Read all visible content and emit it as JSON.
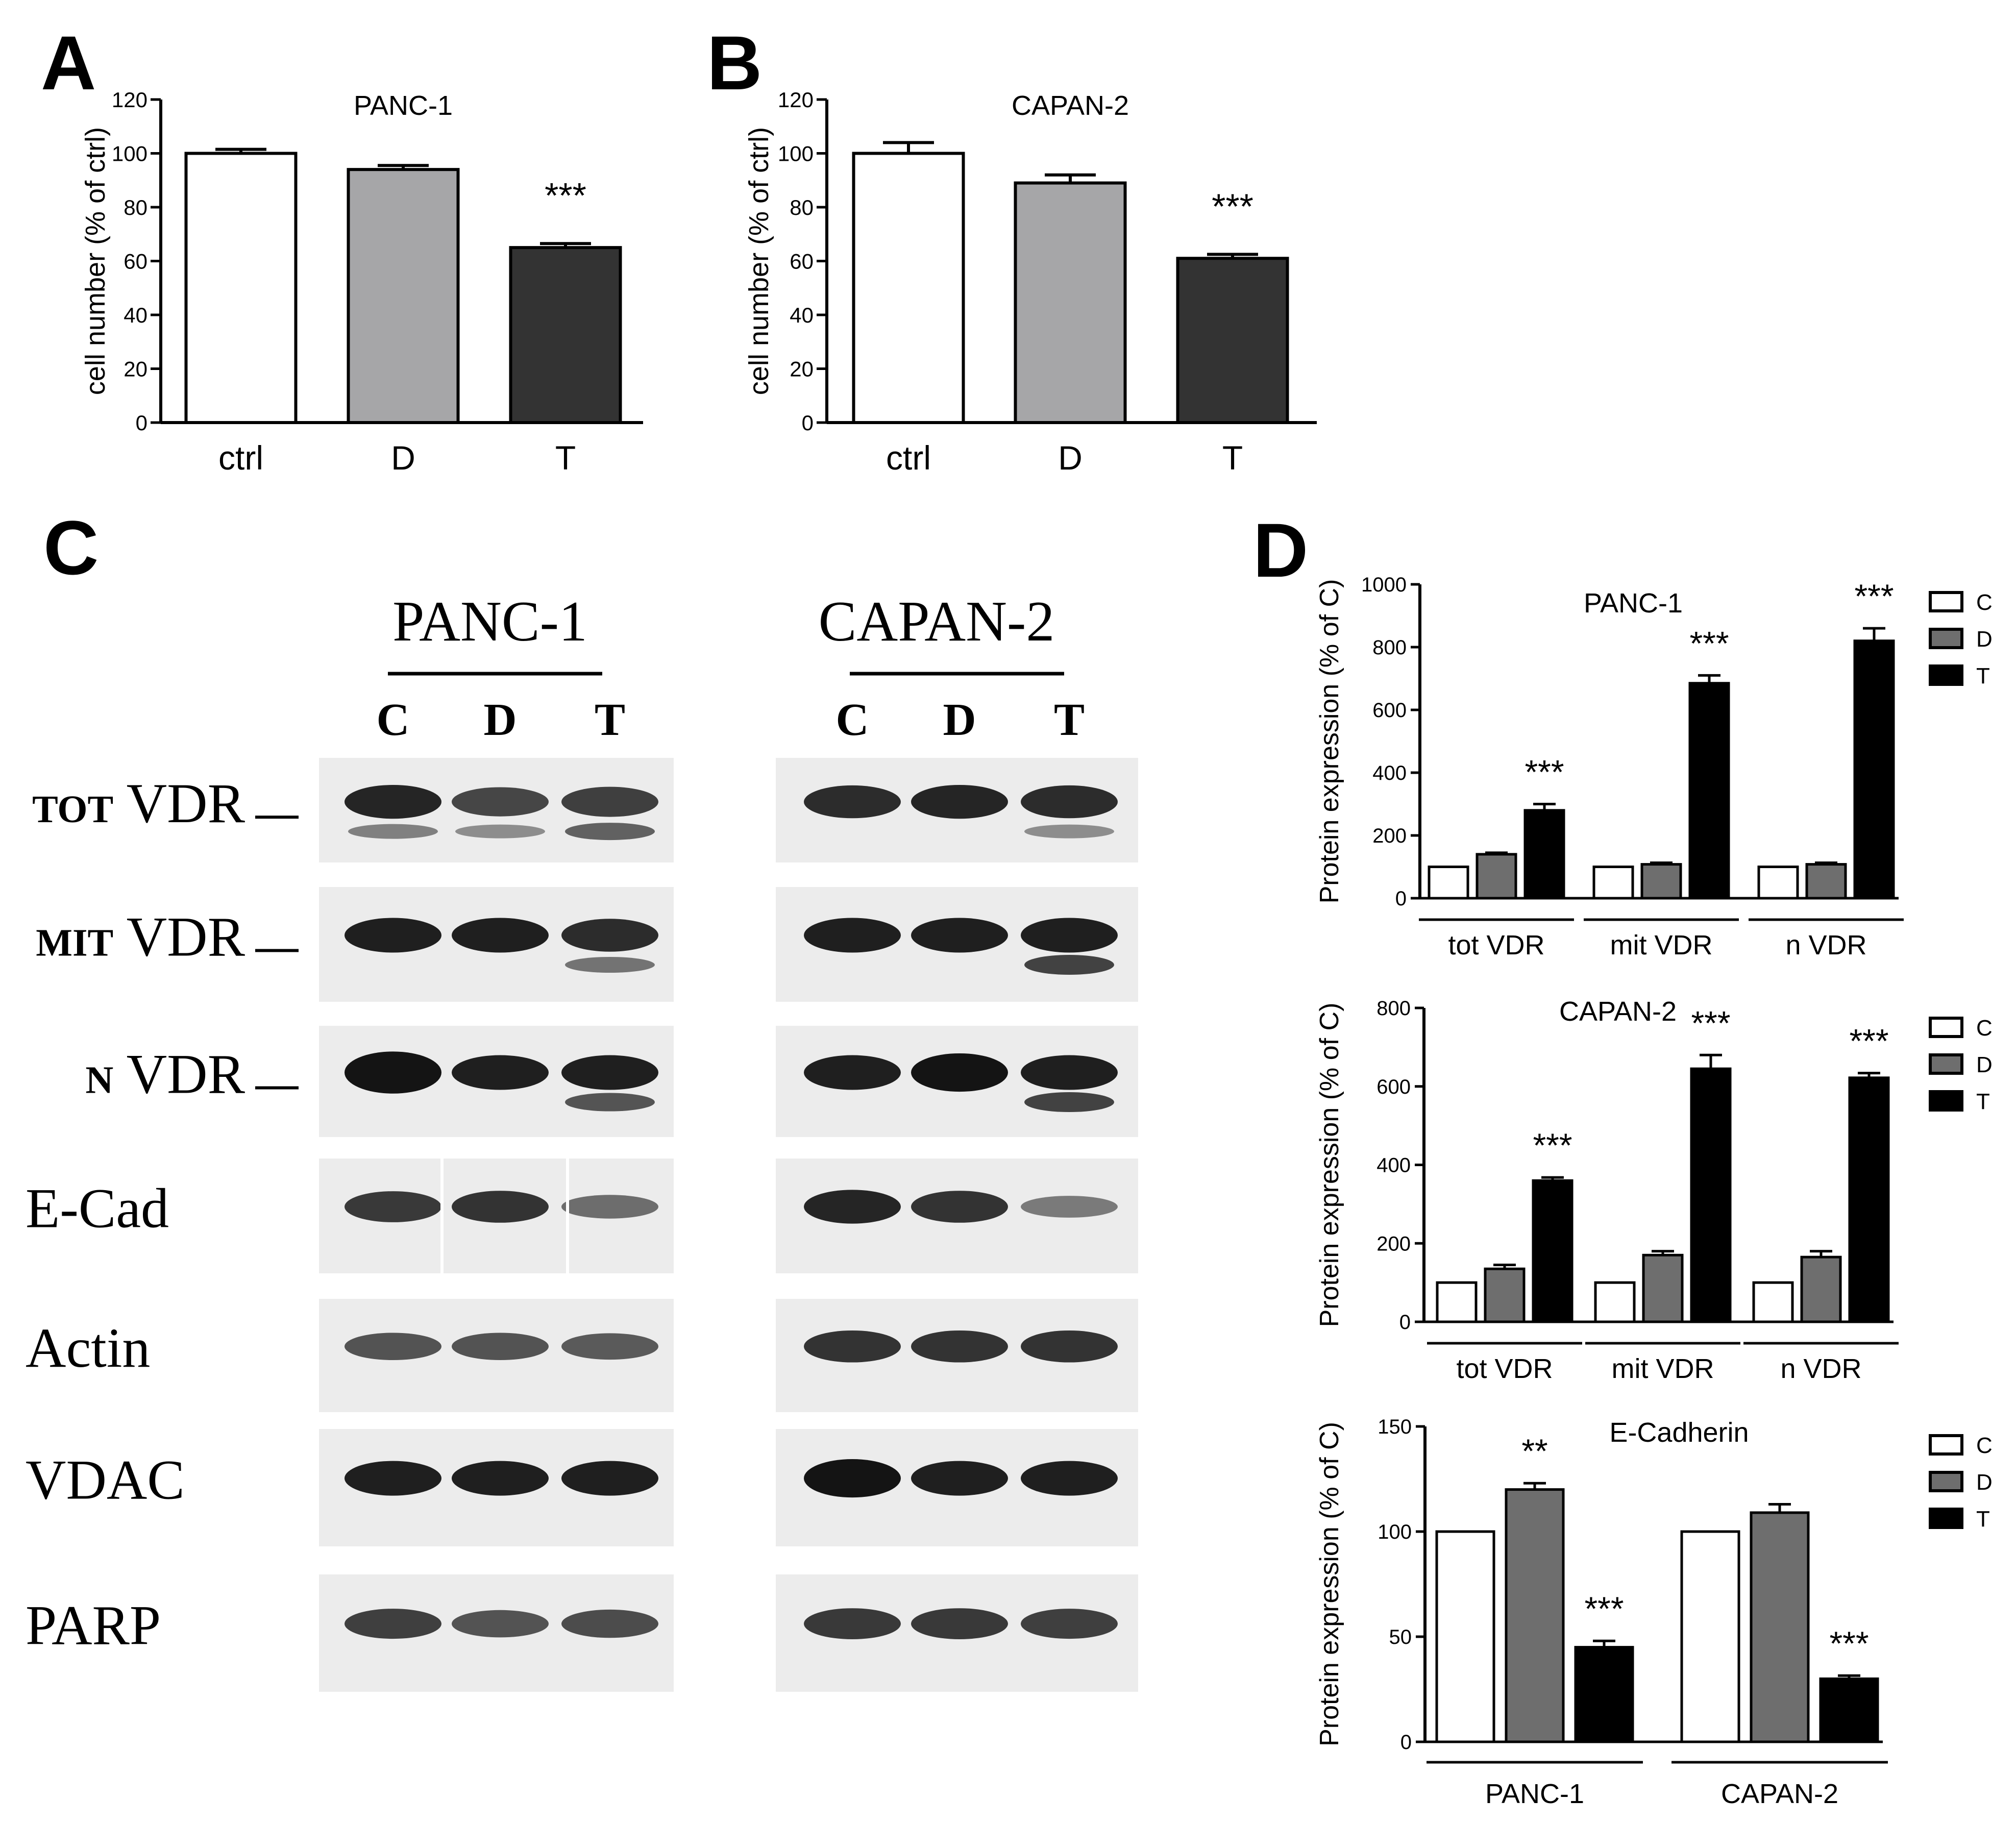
{
  "panel_labels": {
    "A": "A",
    "B": "B",
    "C": "C",
    "D": "D"
  },
  "colors": {
    "ctrl": "#ffffff",
    "D_light": "#a6a6a8",
    "T_dark": "#333333",
    "D_grey": "#6e6e6e",
    "T_black": "#000000",
    "axis": "#000000"
  },
  "chart_data": [
    {
      "id": "A",
      "type": "bar",
      "title": "PANC-1",
      "xlabel": "",
      "ylabel": "cell number (% of ctrl)",
      "ylim": [
        0,
        120
      ],
      "yticks": [
        "0",
        "20",
        "40",
        "60",
        "80",
        "100",
        "120"
      ],
      "categories": [
        "ctrl",
        "D",
        "T"
      ],
      "values": [
        100,
        94,
        65
      ],
      "errors": [
        1.5,
        1.5,
        1.5
      ],
      "annotations": [
        "",
        "",
        "***"
      ]
    },
    {
      "id": "B",
      "type": "bar",
      "title": "CAPAN-2",
      "xlabel": "",
      "ylabel": "cell number (% of ctrl)",
      "ylim": [
        0,
        120
      ],
      "yticks": [
        "0",
        "20",
        "40",
        "60",
        "80",
        "100",
        "120"
      ],
      "categories": [
        "ctrl",
        "D",
        "T"
      ],
      "values": [
        100,
        89,
        61
      ],
      "errors": [
        4,
        3,
        1.5
      ],
      "annotations": [
        "",
        "",
        "***"
      ]
    },
    {
      "id": "D1",
      "type": "bar",
      "title": "PANC-1",
      "ylabel": "Protein expression (% of C)",
      "ylim": [
        0,
        1000
      ],
      "yticks": [
        "0",
        "200",
        "400",
        "600",
        "800",
        "1000"
      ],
      "groups": [
        "tot VDR",
        "mit VDR",
        "n VDR"
      ],
      "legend": [
        "C",
        "D",
        "T"
      ],
      "legend_position": "right",
      "series": [
        {
          "name": "C",
          "values": [
            100,
            100,
            100
          ],
          "errors": [
            0,
            0,
            0
          ],
          "annotations": [
            "",
            "",
            ""
          ]
        },
        {
          "name": "D",
          "values": [
            140,
            108,
            108
          ],
          "errors": [
            5,
            5,
            5
          ],
          "annotations": [
            "",
            "",
            ""
          ]
        },
        {
          "name": "T",
          "values": [
            280,
            685,
            820
          ],
          "errors": [
            20,
            25,
            40
          ],
          "annotations": [
            "***",
            "***",
            "***"
          ]
        }
      ]
    },
    {
      "id": "D2",
      "type": "bar",
      "title": "CAPAN-2",
      "ylabel": "Protein expression (% of C)",
      "ylim": [
        0,
        800
      ],
      "yticks": [
        "0",
        "200",
        "400",
        "600",
        "800"
      ],
      "groups": [
        "tot VDR",
        "mit VDR",
        "n VDR"
      ],
      "legend": [
        "C",
        "D",
        "T"
      ],
      "legend_position": "right",
      "series": [
        {
          "name": "C",
          "values": [
            100,
            100,
            100
          ],
          "errors": [
            0,
            0,
            0
          ],
          "annotations": [
            "",
            "",
            ""
          ]
        },
        {
          "name": "D",
          "values": [
            135,
            170,
            165
          ],
          "errors": [
            10,
            10,
            15
          ],
          "annotations": [
            "",
            "",
            ""
          ]
        },
        {
          "name": "T",
          "values": [
            360,
            645,
            622
          ],
          "errors": [
            8,
            35,
            12
          ],
          "annotations": [
            "***",
            "***",
            "***"
          ]
        }
      ]
    },
    {
      "id": "D3",
      "type": "bar",
      "title": "E-Cadherin",
      "ylabel": "Protein expression (% of C)",
      "ylim": [
        0,
        150
      ],
      "yticks": [
        "0",
        "50",
        "100",
        "150"
      ],
      "groups": [
        "PANC-1",
        "CAPAN-2"
      ],
      "legend": [
        "C",
        "D",
        "T"
      ],
      "legend_position": "right",
      "series": [
        {
          "name": "C",
          "values": [
            100,
            100
          ],
          "errors": [
            0,
            0
          ],
          "annotations": [
            "",
            ""
          ]
        },
        {
          "name": "D",
          "values": [
            120,
            109
          ],
          "errors": [
            3,
            4
          ],
          "annotations": [
            "**",
            ""
          ]
        },
        {
          "name": "T",
          "values": [
            45,
            30
          ],
          "errors": [
            3,
            1.5
          ],
          "annotations": [
            "***",
            "***"
          ]
        }
      ]
    }
  ],
  "blot": {
    "cell_lines": [
      "PANC-1",
      "CAPAN-2"
    ],
    "lanes": [
      "C",
      "D",
      "T"
    ],
    "rows": [
      {
        "label_sc": "tot",
        "label": " VDR",
        "marker": true,
        "bands": [
          [
            0.95,
            0.7,
            0.75
          ],
          [
            0.9,
            0.95,
            0.9
          ]
        ],
        "lower": [
          [
            0.45,
            0.35,
            0.7
          ],
          [
            0,
            0,
            0.35
          ]
        ]
      },
      {
        "label_sc": "mit",
        "label": " VDR",
        "marker": true,
        "bands": [
          [
            1,
            1,
            0.9
          ],
          [
            1,
            1,
            1
          ]
        ],
        "lower": [
          [
            0,
            0,
            0.55
          ],
          [
            0,
            0,
            0.95
          ]
        ]
      },
      {
        "label_sc": "n",
        "label": " VDR",
        "marker": true,
        "bands": [
          [
            1.4,
            1,
            1
          ],
          [
            1,
            1.2,
            1
          ]
        ],
        "lower": [
          [
            0,
            0,
            0.8
          ],
          [
            0,
            0,
            0.95
          ]
        ]
      },
      {
        "label_sc": "",
        "label": "E-Cad",
        "marker": false,
        "bands": [
          [
            0.8,
            0.85,
            0.4
          ],
          [
            0.95,
            0.85,
            0.3
          ]
        ],
        "lower": [
          [
            0,
            0,
            0
          ],
          [
            0,
            0,
            0
          ]
        ]
      },
      {
        "label_sc": "",
        "label": "Actin",
        "marker": false,
        "bands": [
          [
            0.6,
            0.6,
            0.55
          ],
          [
            0.85,
            0.85,
            0.85
          ]
        ],
        "lower": [
          [
            0,
            0,
            0
          ],
          [
            0,
            0,
            0
          ]
        ]
      },
      {
        "label_sc": "",
        "label": "VDAC",
        "marker": false,
        "bands": [
          [
            1,
            1,
            1
          ],
          [
            1.2,
            1,
            1
          ]
        ],
        "lower": [
          [
            0,
            0,
            0
          ],
          [
            0,
            0,
            0
          ]
        ]
      },
      {
        "label_sc": "",
        "label": "PARP",
        "marker": false,
        "bands": [
          [
            0.75,
            0.6,
            0.65
          ],
          [
            0.8,
            0.8,
            0.75
          ]
        ],
        "lower": [
          [
            0,
            0,
            0
          ],
          [
            0,
            0,
            0
          ]
        ]
      }
    ]
  }
}
